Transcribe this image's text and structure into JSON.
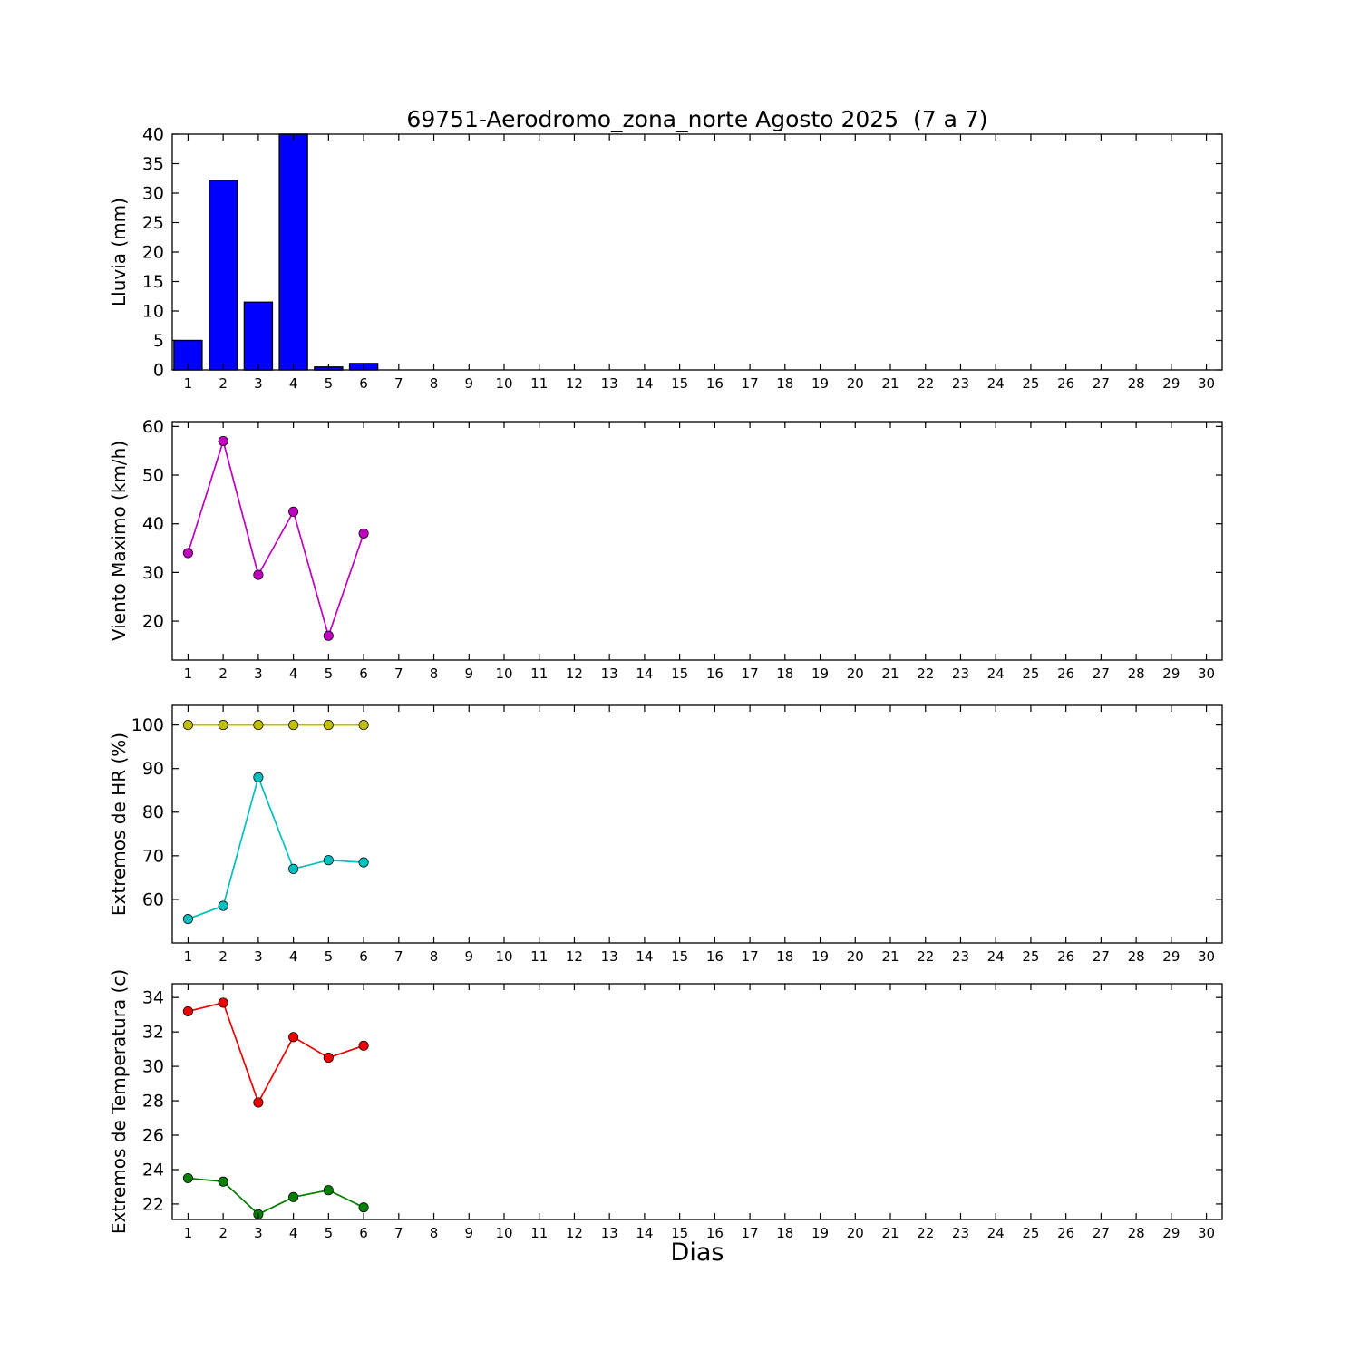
{
  "x_axis": {
    "ticks": [
      1,
      2,
      3,
      4,
      5,
      6,
      7,
      8,
      9,
      10,
      11,
      12,
      13,
      14,
      15,
      16,
      17,
      18,
      19,
      20,
      21,
      22,
      23,
      24,
      25,
      26,
      27,
      28,
      29,
      30
    ],
    "lim": [
      0.55,
      30.45
    ]
  },
  "chart_data": [
    {
      "name": "lluvia",
      "type": "bar",
      "title": "69751-Aerodromo_zona_norte Agosto 2025  (7 a 7)",
      "ylabel": "Lluvia (mm)",
      "x": [
        1,
        2,
        3,
        4,
        5,
        6
      ],
      "values": [
        5.0,
        32.2,
        11.5,
        40.0,
        0.5,
        1.1
      ],
      "color": "#0000ff",
      "ylim": [
        0,
        40
      ],
      "yticks": [
        0,
        5,
        10,
        15,
        20,
        25,
        30,
        35,
        40
      ],
      "grid": false,
      "legend": "none"
    },
    {
      "name": "viento",
      "type": "line",
      "ylabel": "Viento Maximo (km/h)",
      "x": [
        1,
        2,
        3,
        4,
        5,
        6
      ],
      "series": [
        {
          "name": "viento-maximo",
          "color": "#bf00bf",
          "values": [
            34.0,
            57.0,
            29.5,
            42.5,
            17.0,
            38.0
          ]
        }
      ],
      "ylim": [
        12,
        61
      ],
      "yticks": [
        20,
        30,
        40,
        50,
        60
      ],
      "grid": false,
      "legend": "none"
    },
    {
      "name": "humedad",
      "type": "line",
      "ylabel": "Extremos de HR (%)",
      "x": [
        1,
        2,
        3,
        4,
        5,
        6
      ],
      "series": [
        {
          "name": "hr-maxima",
          "color": "#bfbf00",
          "values": [
            100,
            100,
            100,
            100,
            100,
            100
          ]
        },
        {
          "name": "hr-minima",
          "color": "#00bfbf",
          "values": [
            55.5,
            58.5,
            88.0,
            67.0,
            69.0,
            68.5
          ]
        }
      ],
      "ylim": [
        50,
        104.5
      ],
      "yticks": [
        60,
        70,
        80,
        90,
        100
      ],
      "grid": false,
      "legend": "none"
    },
    {
      "name": "temperatura",
      "type": "line",
      "ylabel": "Extremos de Temperatura (c)",
      "xlabel": "Dias",
      "x": [
        1,
        2,
        3,
        4,
        5,
        6
      ],
      "series": [
        {
          "name": "temperatura-maxima",
          "color": "#ee0000",
          "values": [
            33.2,
            33.7,
            27.9,
            31.7,
            30.5,
            31.2
          ]
        },
        {
          "name": "temperatura-minima",
          "color": "#007f00",
          "values": [
            23.5,
            23.3,
            21.4,
            22.4,
            22.8,
            21.8
          ]
        }
      ],
      "ylim": [
        21.1,
        34.8
      ],
      "yticks": [
        22,
        24,
        26,
        28,
        30,
        32,
        34
      ],
      "grid": false,
      "legend": "none"
    }
  ]
}
